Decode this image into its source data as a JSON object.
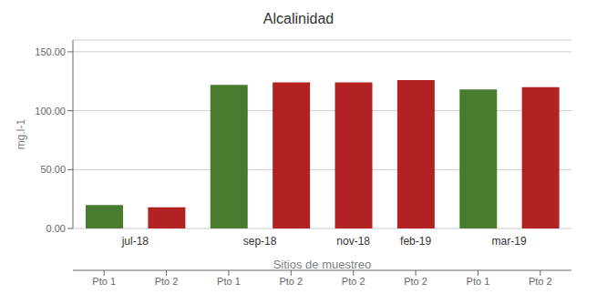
{
  "chart_data": {
    "type": "bar",
    "title": "Alcalinidad",
    "xlabel": "Sitios de muestreo",
    "ylabel": "mg.l-1",
    "categories": [
      "Pto 1",
      "Pto 2",
      "Pto 1",
      "Pto 2",
      "Pto 2",
      "Pto 2",
      "Pto 1",
      "Pto 2"
    ],
    "groups": [
      "jul-18",
      "jul-18",
      "sep-18",
      "sep-18",
      "nov-18",
      "feb-19",
      "mar-19",
      "mar-19"
    ],
    "values": [
      20,
      18,
      122,
      124,
      124,
      126,
      118,
      120
    ],
    "colors": [
      "#4a7c2f",
      "#b22222",
      "#4a7c2f",
      "#b22222",
      "#b22222",
      "#b22222",
      "#4a7c2f",
      "#b22222"
    ],
    "ylim": [
      0,
      160
    ],
    "yticks": [
      {
        "value": 0,
        "label": "0.00"
      },
      {
        "value": 50,
        "label": "50.00"
      },
      {
        "value": 100,
        "label": "100.00"
      },
      {
        "value": 150,
        "label": "150.00"
      }
    ],
    "grid": true
  }
}
